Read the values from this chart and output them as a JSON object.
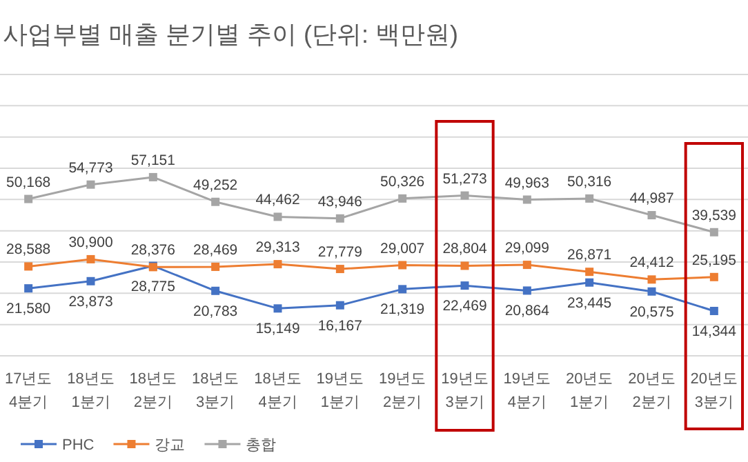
{
  "chart_data": {
    "type": "line",
    "title": "사업부별 매출 분기별 추이 (단위: 백만원)",
    "categories": [
      "17년도 4분기",
      "18년도 1분기",
      "18년도 2분기",
      "18년도 3분기",
      "18년도 4분기",
      "19년도 1분기",
      "19년도 2분기",
      "19년도 3분기",
      "19년도 4분기",
      "20년도 1분기",
      "20년도 2분기",
      "20년도 3분기"
    ],
    "series": [
      {
        "name": "PHC",
        "color": "#4472c4",
        "values": [
          21580,
          23873,
          28775,
          20783,
          15149,
          16167,
          21319,
          22469,
          20864,
          23445,
          20575,
          14344
        ],
        "value_labels": [
          "21,580",
          "23,873",
          "28,775",
          "20,783",
          "15,149",
          "16,167",
          "21,319",
          "22,469",
          "20,864",
          "23,445",
          "20,575",
          "14,344"
        ]
      },
      {
        "name": "강교",
        "color": "#ed7d31",
        "values": [
          28588,
          30900,
          28376,
          28469,
          29313,
          27779,
          29007,
          28804,
          29099,
          26871,
          24412,
          25195
        ],
        "value_labels": [
          "28,588",
          "30,900",
          "28,376",
          "28,469",
          "29,313",
          "27,779",
          "29,007",
          "28,804",
          "29,099",
          "26,871",
          "24,412",
          "25,195"
        ]
      },
      {
        "name": "총합",
        "color": "#a5a5a5",
        "values": [
          50168,
          54773,
          57151,
          49252,
          44462,
          43946,
          50326,
          51273,
          49963,
          50316,
          44987,
          39539
        ],
        "value_labels": [
          "50,168",
          "54,773",
          "57,151",
          "49,252",
          "44,462",
          "43,946",
          "50,326",
          "51,273",
          "49,963",
          "50,316",
          "44,987",
          "39,539"
        ]
      }
    ],
    "tick_labels": "x",
    "grid": "y",
    "marker": "square",
    "line_style": "solid",
    "legend": "bottom left"
  }
}
